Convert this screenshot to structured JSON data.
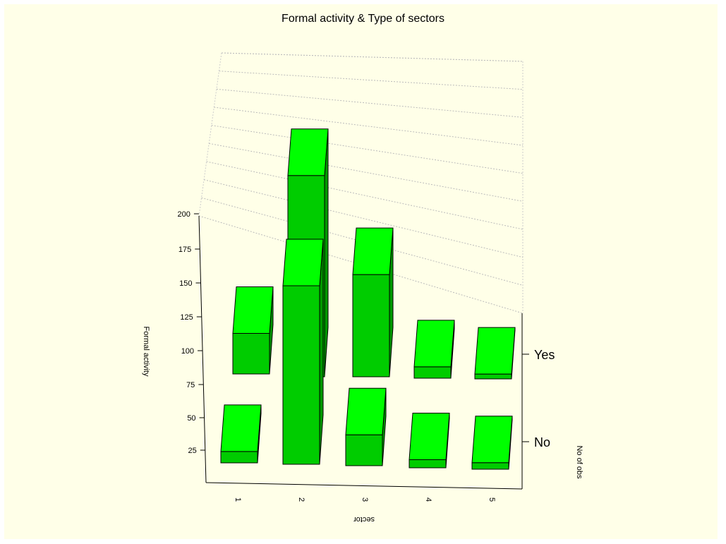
{
  "chart_data": {
    "type": "bar",
    "projection": "3d",
    "title": "Formal activity & Type of sectors",
    "xlabel": "sector",
    "ylabel": "Formal activity",
    "zlabel": "No of obs",
    "categories": [
      "1",
      "2",
      "3",
      "4",
      "5"
    ],
    "series": [
      {
        "name": "No",
        "values": [
          7,
          110,
          19,
          5,
          4
        ]
      },
      {
        "name": "Yes",
        "values": [
          25,
          124,
          63,
          7,
          3
        ]
      }
    ],
    "zlim": [
      0,
      200
    ],
    "zticks": [
      25,
      50,
      75,
      100,
      125,
      150,
      175,
      200
    ],
    "grid": true,
    "colors": {
      "front": "#00cc00",
      "top": "#00ff00",
      "side": "#009900",
      "background": "#ffffe8"
    }
  }
}
